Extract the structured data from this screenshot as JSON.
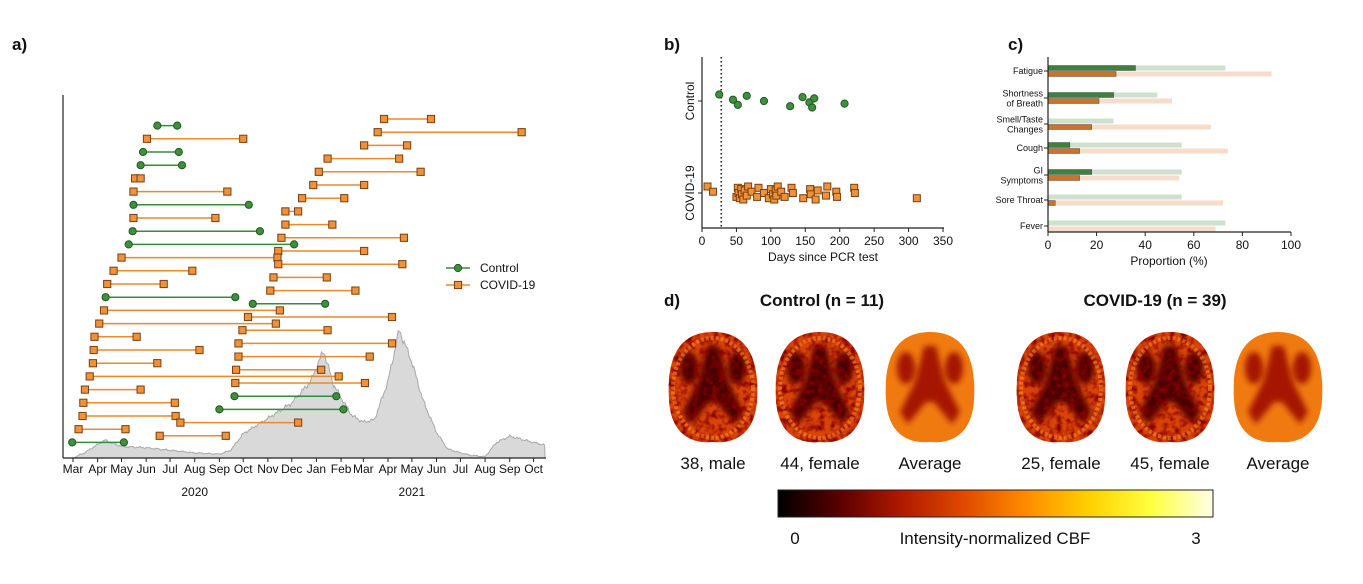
{
  "chart_data": [
    {
      "panel_label": "a)",
      "type": "timeline",
      "x_tick_labels": [
        "Mar",
        "Apr",
        "May",
        "Jun",
        "Jul",
        "Aug",
        "Sep",
        "Oct",
        "Nov",
        "Dec",
        "Jan",
        "Feb",
        "Mar",
        "Apr",
        "May",
        "Jun",
        "Jul",
        "Aug",
        "Sep",
        "Oct"
      ],
      "x_tick_dates": [
        "2020-03-01",
        "2020-04-01",
        "2020-05-01",
        "2020-06-01",
        "2020-07-01",
        "2020-08-01",
        "2020-09-01",
        "2020-10-01",
        "2020-11-01",
        "2020-12-01",
        "2021-01-01",
        "2021-02-01",
        "2021-03-01",
        "2021-04-01",
        "2021-05-01",
        "2021-06-01",
        "2021-07-01",
        "2021-08-01",
        "2021-09-01",
        "2021-10-01"
      ],
      "year_labels": [
        {
          "label": "2020",
          "date": "2020-08-01"
        },
        {
          "label": "2021",
          "date": "2021-05-01"
        }
      ],
      "xlim": [
        "2020-02-20",
        "2021-10-15"
      ],
      "legend": {
        "position": "right",
        "entries": [
          {
            "label": "Control",
            "color": "#3a8a3a",
            "marker": "circle"
          },
          {
            "label": "COVID-19",
            "color": "#e88a2e",
            "marker": "square"
          }
        ]
      },
      "participants": [
        {
          "group": "COVID-19",
          "start": "2021-03-27",
          "end": "2021-05-25"
        },
        {
          "group": "Control",
          "start": "2020-06-15",
          "end": "2020-07-10"
        },
        {
          "group": "COVID-19",
          "start": "2021-03-19",
          "end": "2021-09-16"
        },
        {
          "group": "COVID-19",
          "start": "2020-06-02",
          "end": "2020-10-01"
        },
        {
          "group": "COVID-19",
          "start": "2021-03-02",
          "end": "2021-04-25"
        },
        {
          "group": "Control",
          "start": "2020-05-28",
          "end": "2020-07-12"
        },
        {
          "group": "COVID-19",
          "start": "2021-01-15",
          "end": "2021-04-15"
        },
        {
          "group": "Control",
          "start": "2020-05-25",
          "end": "2020-07-16"
        },
        {
          "group": "COVID-19",
          "start": "2021-01-04",
          "end": "2021-05-12"
        },
        {
          "group": "COVID-19",
          "start": "2020-05-18",
          "end": "2020-05-25"
        },
        {
          "group": "COVID-19",
          "start": "2020-12-28",
          "end": "2021-03-02"
        },
        {
          "group": "COVID-19",
          "start": "2020-05-16",
          "end": "2020-09-11"
        },
        {
          "group": "COVID-19",
          "start": "2020-12-14",
          "end": "2021-02-05"
        },
        {
          "group": "Control",
          "start": "2020-05-16",
          "end": "2020-10-08"
        },
        {
          "group": "COVID-19",
          "start": "2020-11-23",
          "end": "2020-12-09"
        },
        {
          "group": "COVID-19",
          "start": "2020-05-16",
          "end": "2020-08-27"
        },
        {
          "group": "COVID-19",
          "start": "2020-11-23",
          "end": "2021-01-21"
        },
        {
          "group": "Control",
          "start": "2020-05-15",
          "end": "2020-10-22"
        },
        {
          "group": "COVID-19",
          "start": "2020-11-18",
          "end": "2021-04-21"
        },
        {
          "group": "Control",
          "start": "2020-05-10",
          "end": "2020-12-04"
        },
        {
          "group": "COVID-19",
          "start": "2020-11-14",
          "end": "2021-03-02"
        },
        {
          "group": "COVID-19",
          "start": "2020-05-01",
          "end": "2020-11-13"
        },
        {
          "group": "COVID-19",
          "start": "2020-11-14",
          "end": "2021-04-19"
        },
        {
          "group": "COVID-19",
          "start": "2020-04-21",
          "end": "2020-07-29"
        },
        {
          "group": "COVID-19",
          "start": "2020-11-08",
          "end": "2021-01-14"
        },
        {
          "group": "COVID-19",
          "start": "2020-04-13",
          "end": "2020-06-23"
        },
        {
          "group": "COVID-19",
          "start": "2020-11-04",
          "end": "2021-02-19"
        },
        {
          "group": "Control",
          "start": "2020-04-11",
          "end": "2020-09-21"
        },
        {
          "group": "Control",
          "start": "2020-10-13",
          "end": "2021-01-12"
        },
        {
          "group": "COVID-19",
          "start": "2020-04-09",
          "end": "2020-11-16"
        },
        {
          "group": "COVID-19",
          "start": "2020-10-07",
          "end": "2021-04-06"
        },
        {
          "group": "COVID-19",
          "start": "2020-04-03",
          "end": "2020-11-11"
        },
        {
          "group": "COVID-19",
          "start": "2020-09-30",
          "end": "2021-01-15"
        },
        {
          "group": "COVID-19",
          "start": "2020-03-28",
          "end": "2020-05-20"
        },
        {
          "group": "COVID-19",
          "start": "2020-09-25",
          "end": "2021-04-06"
        },
        {
          "group": "COVID-19",
          "start": "2020-03-27",
          "end": "2020-08-07"
        },
        {
          "group": "COVID-19",
          "start": "2020-09-25",
          "end": "2021-03-09"
        },
        {
          "group": "COVID-19",
          "start": "2020-03-26",
          "end": "2020-06-15"
        },
        {
          "group": "COVID-19",
          "start": "2020-09-22",
          "end": "2021-01-07"
        },
        {
          "group": "COVID-19",
          "start": "2020-03-22",
          "end": "2021-01-29"
        },
        {
          "group": "COVID-19",
          "start": "2020-09-21",
          "end": "2021-03-03"
        },
        {
          "group": "COVID-19",
          "start": "2020-03-16",
          "end": "2020-05-25"
        },
        {
          "group": "Control",
          "start": "2020-09-20",
          "end": "2021-01-26"
        },
        {
          "group": "COVID-19",
          "start": "2020-03-14",
          "end": "2020-07-07"
        },
        {
          "group": "Control",
          "start": "2020-09-01",
          "end": "2021-02-04"
        },
        {
          "group": "COVID-19",
          "start": "2020-03-13",
          "end": "2020-07-08"
        },
        {
          "group": "COVID-19",
          "start": "2020-07-14",
          "end": "2020-12-09"
        },
        {
          "group": "COVID-19",
          "start": "2020-03-08",
          "end": "2020-05-06"
        },
        {
          "group": "COVID-19",
          "start": "2020-06-18",
          "end": "2020-09-09"
        },
        {
          "group": "Control",
          "start": "2020-02-29",
          "end": "2020-05-04"
        }
      ],
      "background_area": {
        "color": "#d9d9d9",
        "dates": [
          "2020-03-01",
          "2020-03-15",
          "2020-04-10",
          "2020-05-01",
          "2020-06-01",
          "2020-07-01",
          "2020-08-01",
          "2020-09-01",
          "2020-09-15",
          "2020-10-01",
          "2020-11-01",
          "2020-12-01",
          "2020-12-25",
          "2021-01-10",
          "2021-01-22",
          "2021-02-01",
          "2021-02-15",
          "2021-03-01",
          "2021-03-15",
          "2021-04-01",
          "2021-04-15",
          "2021-05-01",
          "2021-05-15",
          "2021-06-01",
          "2021-06-15",
          "2021-07-01",
          "2021-07-15",
          "2021-08-01",
          "2021-08-15",
          "2021-09-01",
          "2021-10-15"
        ],
        "relative": [
          0,
          0.04,
          0.14,
          0.09,
          0.08,
          0.06,
          0.04,
          0.03,
          0.06,
          0.19,
          0.31,
          0.43,
          0.6,
          0.84,
          0.58,
          0.47,
          0.33,
          0.28,
          0.3,
          0.6,
          1.0,
          0.75,
          0.45,
          0.2,
          0.07,
          0.04,
          0.02,
          0.01,
          0.12,
          0.17,
          0.1
        ]
      }
    },
    {
      "panel_label": "b)",
      "type": "scatter",
      "xlabel": "Days since PCR test",
      "x_ticks": [
        0,
        50,
        100,
        150,
        200,
        250,
        300,
        350
      ],
      "xlim": [
        0,
        350
      ],
      "categories": [
        "Control",
        "COVID-19"
      ],
      "reference_line_x": 28,
      "series": [
        {
          "name": "Control",
          "color": "#3a8a3a",
          "marker": "circle",
          "values": [
            25,
            45,
            52,
            65,
            90,
            128,
            146,
            156,
            160,
            163,
            207
          ]
        },
        {
          "name": "COVID-19",
          "color": "#e88a2e",
          "marker": "square",
          "values": [
            8,
            16,
            50,
            52,
            53,
            55,
            57,
            58,
            60,
            62,
            65,
            67,
            72,
            80,
            82,
            90,
            97,
            100,
            103,
            105,
            107,
            108,
            110,
            115,
            120,
            130,
            132,
            147,
            157,
            158,
            165,
            168,
            180,
            182,
            195,
            196,
            221,
            222,
            312
          ]
        }
      ]
    },
    {
      "panel_label": "c)",
      "type": "bar",
      "orientation": "horizontal",
      "xlabel": "Proportion (%)",
      "x_ticks": [
        0,
        20,
        40,
        60,
        80,
        100
      ],
      "xlim": [
        0,
        100
      ],
      "categories": [
        "Fatigue",
        "Shortness|of Breath",
        "Smell/Taste|Changes",
        "Cough",
        "GI|Symptoms",
        "Sore Throat",
        "Fever"
      ],
      "series": [
        {
          "group": "Control",
          "color": "#3f7f3f",
          "light_color": "#cfe0cf",
          "dark_values": [
            36,
            27,
            0,
            9,
            18,
            0,
            0
          ],
          "light_values": [
            73,
            45,
            27,
            55,
            55,
            55,
            73
          ]
        },
        {
          "group": "COVID-19",
          "color": "#c7742e",
          "light_color": "#f6dccb",
          "dark_values": [
            28,
            21,
            18,
            13,
            13,
            3,
            0
          ],
          "light_values": [
            92,
            51,
            67,
            74,
            54,
            72,
            69
          ]
        }
      ]
    }
  ],
  "panel_d": {
    "panel_label": "d)",
    "groups": [
      {
        "title": "Control (n = 11)",
        "images": [
          {
            "label": "38, male",
            "kind": "individual"
          },
          {
            "label": "44, female",
            "kind": "individual"
          },
          {
            "label": "Average",
            "kind": "average"
          }
        ]
      },
      {
        "title": "COVID-19 (n = 39)",
        "images": [
          {
            "label": "25, female",
            "kind": "individual"
          },
          {
            "label": "45, female",
            "kind": "individual"
          },
          {
            "label": "Average",
            "kind": "average"
          }
        ]
      }
    ],
    "colorbar": {
      "min_label": "0",
      "max_label": "3",
      "label": "Intensity-normalized CBF",
      "colors": [
        "#000000",
        "#5a0000",
        "#b01a00",
        "#e04a00",
        "#ff8c00",
        "#ffd000",
        "#ffff40",
        "#ffffe8"
      ]
    }
  }
}
